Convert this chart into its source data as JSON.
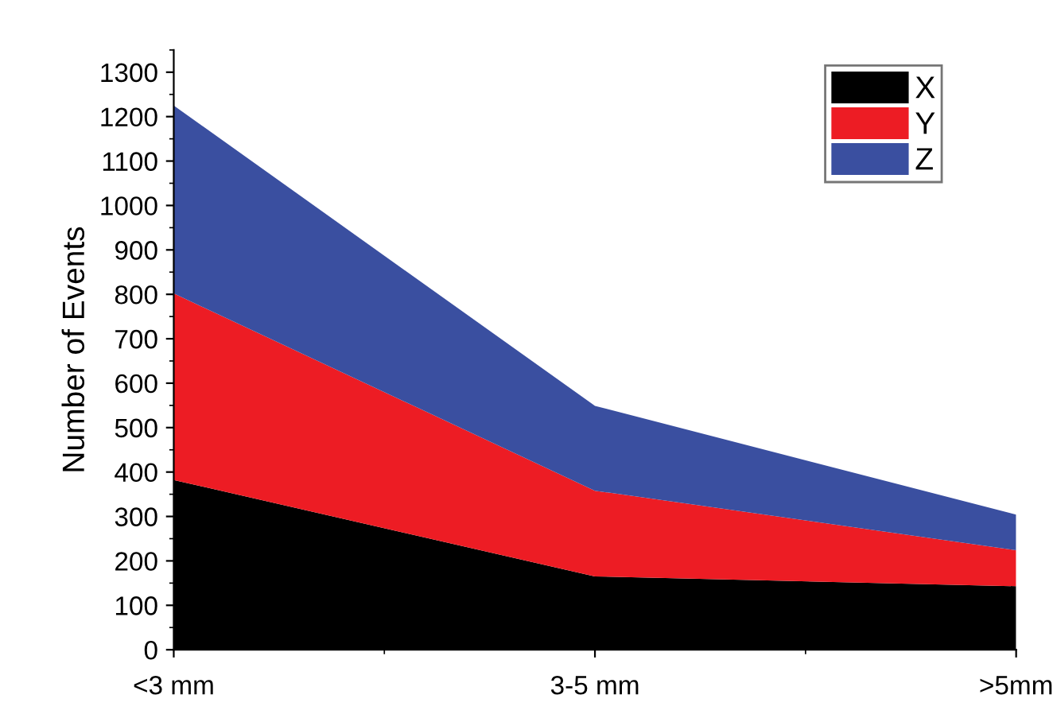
{
  "chart_data": {
    "type": "area",
    "stacked": true,
    "ylabel": "Number of Events",
    "categories": [
      "<3 mm",
      "3-5 mm",
      ">5mm"
    ],
    "series": [
      {
        "name": "X",
        "color": "#000000",
        "values": [
          382,
          165,
          143
        ]
      },
      {
        "name": "Y",
        "color": "#ed1c24",
        "values": [
          420,
          193,
          81
        ]
      },
      {
        "name": "Z",
        "color": "#3a4fa0",
        "values": [
          423,
          191,
          80
        ]
      }
    ],
    "ylim": [
      0,
      1350
    ],
    "yticks": [
      0,
      100,
      200,
      300,
      400,
      500,
      600,
      700,
      800,
      900,
      1000,
      1100,
      1200,
      1300
    ],
    "grid": false,
    "legend": "top right"
  }
}
